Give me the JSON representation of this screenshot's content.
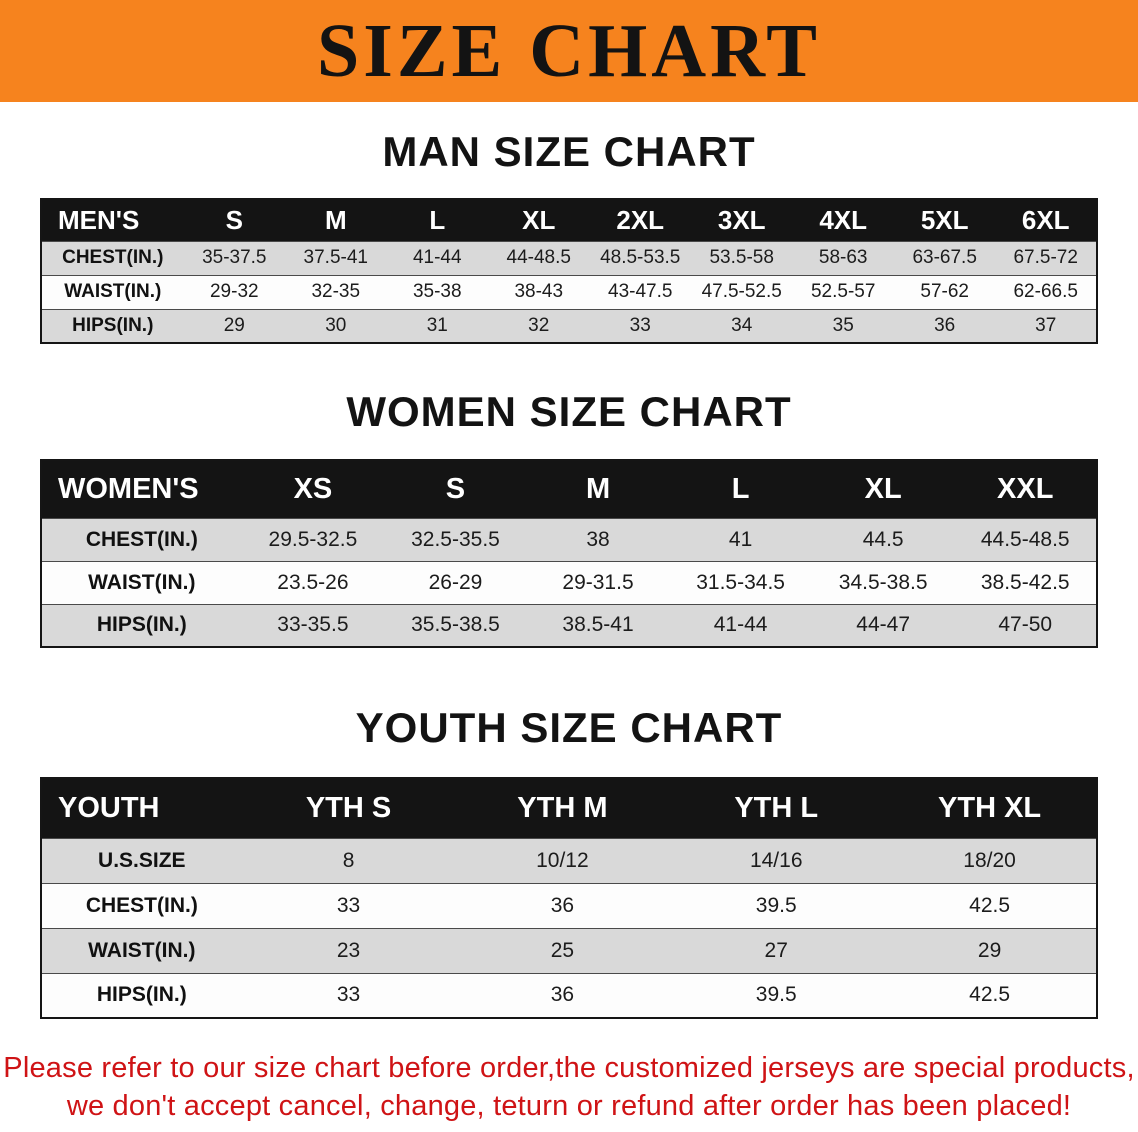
{
  "banner": {
    "title": "SIZE CHART",
    "bg_color": "#f6831e"
  },
  "men": {
    "heading": "MAN SIZE CHART",
    "header": [
      "MEN'S",
      "S",
      "M",
      "L",
      "XL",
      "2XL",
      "3XL",
      "4XL",
      "5XL",
      "6XL"
    ],
    "rows": [
      {
        "label": "CHEST(IN.)",
        "values": [
          "35-37.5",
          "37.5-41",
          "41-44",
          "44-48.5",
          "48.5-53.5",
          "53.5-58",
          "58-63",
          "63-67.5",
          "67.5-72"
        ]
      },
      {
        "label": "WAIST(IN.)",
        "values": [
          "29-32",
          "32-35",
          "35-38",
          "38-43",
          "43-47.5",
          "47.5-52.5",
          "52.5-57",
          "57-62",
          "62-66.5"
        ]
      },
      {
        "label": "HIPS(IN.)",
        "values": [
          "29",
          "30",
          "31",
          "32",
          "33",
          "34",
          "35",
          "36",
          "37"
        ]
      }
    ]
  },
  "women": {
    "heading": "WOMEN SIZE CHART",
    "header": [
      "WOMEN'S",
      "XS",
      "S",
      "M",
      "L",
      "XL",
      "XXL"
    ],
    "rows": [
      {
        "label": "CHEST(IN.)",
        "values": [
          "29.5-32.5",
          "32.5-35.5",
          "38",
          "41",
          "44.5",
          "44.5-48.5"
        ]
      },
      {
        "label": "WAIST(IN.)",
        "values": [
          "23.5-26",
          "26-29",
          "29-31.5",
          "31.5-34.5",
          "34.5-38.5",
          "38.5-42.5"
        ]
      },
      {
        "label": "HIPS(IN.)",
        "values": [
          "33-35.5",
          "35.5-38.5",
          "38.5-41",
          "41-44",
          "44-47",
          "47-50"
        ]
      }
    ]
  },
  "youth": {
    "heading": "YOUTH SIZE CHART",
    "header": [
      "YOUTH",
      "YTH S",
      "YTH M",
      "YTH L",
      "YTH XL"
    ],
    "rows": [
      {
        "label": "U.S.SIZE",
        "values": [
          "8",
          "10/12",
          "14/16",
          "18/20"
        ]
      },
      {
        "label": "CHEST(IN.)",
        "values": [
          "33",
          "36",
          "39.5",
          "42.5"
        ]
      },
      {
        "label": "WAIST(IN.)",
        "values": [
          "23",
          "25",
          "27",
          "29"
        ]
      },
      {
        "label": "HIPS(IN.)",
        "values": [
          "33",
          "36",
          "39.5",
          "42.5"
        ]
      }
    ]
  },
  "footer": {
    "line1": "Please refer to our size chart before order,the customized jerseys are special products,",
    "line2": "we don't accept cancel, change, teturn or refund after order has been placed!",
    "text_color": "#cf1315"
  }
}
